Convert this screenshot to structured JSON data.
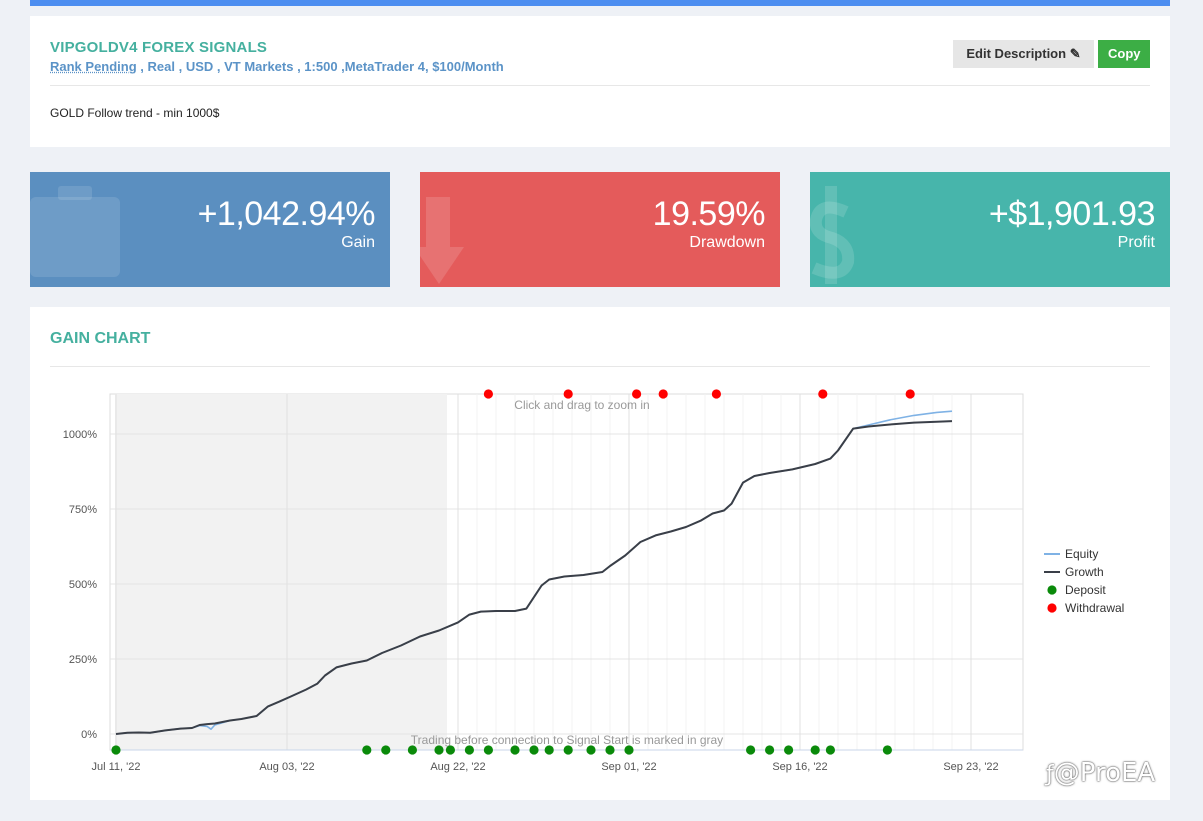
{
  "signal": {
    "title": "VIPGOLDV4 FOREX SIGNALS",
    "rank": "Rank Pending",
    "details": " , Real , USD , VT Markets , 1:500 ,MetaTrader 4, $100/Month",
    "description": "GOLD Follow trend - min 1000$",
    "edit_label": "Edit Description",
    "copy_label": "Copy"
  },
  "stats": [
    {
      "value": "+1,042.94%",
      "label": "Gain",
      "color": "#5b8fc0",
      "icon": "briefcase-icon"
    },
    {
      "value": "19.59%",
      "label": "Drawdown",
      "color": "#e45b5b",
      "icon": "arrow-down-icon"
    },
    {
      "value": "+$1,901.93",
      "label": "Profit",
      "color": "#47b5ab",
      "icon": "dollar-icon"
    }
  ],
  "chart_section": {
    "title": "GAIN CHART",
    "zoom_hint": "Click and drag to zoom in",
    "gray_note": "Trading before connection to Signal Start is marked in gray"
  },
  "watermark": "@ProEA",
  "chart_data": {
    "type": "line",
    "x_ticks": [
      "Jul 11, '22",
      "Aug 03, '22",
      "Aug 22, '22",
      "Sep 01, '22",
      "Sep 16, '22",
      "Sep 23, '22"
    ],
    "y_ticks": [
      "0%",
      "250%",
      "500%",
      "750%",
      "1000%"
    ],
    "ylim": [
      -50,
      1130
    ],
    "legend_position": "right",
    "colors": {
      "equity": "#7fb2e5",
      "growth": "#3a3f48",
      "deposit": "#0a8a0a",
      "withdrawal": "#ff0000"
    },
    "series": [
      {
        "name": "Equity",
        "points": [
          [
            0,
            0
          ],
          [
            3,
            4
          ],
          [
            6,
            5
          ],
          [
            9,
            4
          ],
          [
            13,
            12
          ],
          [
            17,
            18
          ],
          [
            20,
            20
          ],
          [
            22,
            28
          ],
          [
            24,
            25
          ],
          [
            25,
            16
          ],
          [
            26,
            30
          ],
          [
            30,
            45
          ],
          [
            33,
            50
          ],
          [
            37,
            60
          ],
          [
            40,
            92
          ],
          [
            43,
            108
          ],
          [
            46,
            125
          ],
          [
            50,
            148
          ],
          [
            53,
            168
          ],
          [
            55,
            195
          ],
          [
            58,
            222
          ],
          [
            62,
            235
          ],
          [
            66,
            245
          ],
          [
            70,
            270
          ],
          [
            75,
            295
          ],
          [
            80,
            325
          ],
          [
            85,
            345
          ],
          [
            90,
            372
          ],
          [
            93,
            398
          ],
          [
            96,
            408
          ],
          [
            100,
            410
          ],
          [
            105,
            410
          ],
          [
            108,
            418
          ],
          [
            112,
            495
          ],
          [
            114,
            515
          ],
          [
            118,
            525
          ],
          [
            123,
            530
          ],
          [
            128,
            540
          ],
          [
            130,
            560
          ],
          [
            134,
            595
          ],
          [
            138,
            640
          ],
          [
            142,
            662
          ],
          [
            146,
            675
          ],
          [
            150,
            690
          ],
          [
            154,
            712
          ],
          [
            157,
            735
          ],
          [
            160,
            745
          ],
          [
            162,
            768
          ],
          [
            165,
            838
          ],
          [
            168,
            860
          ],
          [
            172,
            870
          ],
          [
            178,
            882
          ],
          [
            184,
            900
          ],
          [
            188,
            918
          ],
          [
            190,
            945
          ],
          [
            194,
            1018
          ],
          [
            198,
            1030
          ],
          [
            204,
            1048
          ],
          [
            210,
            1062
          ],
          [
            216,
            1072
          ],
          [
            220,
            1076
          ]
        ]
      },
      {
        "name": "Growth",
        "points": [
          [
            0,
            0
          ],
          [
            3,
            4
          ],
          [
            6,
            5
          ],
          [
            9,
            4
          ],
          [
            13,
            12
          ],
          [
            17,
            18
          ],
          [
            20,
            20
          ],
          [
            22,
            30
          ],
          [
            24,
            33
          ],
          [
            26,
            35
          ],
          [
            30,
            45
          ],
          [
            33,
            50
          ],
          [
            37,
            60
          ],
          [
            40,
            92
          ],
          [
            43,
            108
          ],
          [
            46,
            125
          ],
          [
            50,
            148
          ],
          [
            53,
            168
          ],
          [
            55,
            195
          ],
          [
            58,
            222
          ],
          [
            62,
            235
          ],
          [
            66,
            245
          ],
          [
            70,
            270
          ],
          [
            75,
            295
          ],
          [
            80,
            325
          ],
          [
            85,
            345
          ],
          [
            90,
            372
          ],
          [
            93,
            398
          ],
          [
            96,
            408
          ],
          [
            100,
            410
          ],
          [
            105,
            410
          ],
          [
            108,
            418
          ],
          [
            112,
            495
          ],
          [
            114,
            515
          ],
          [
            118,
            525
          ],
          [
            123,
            530
          ],
          [
            128,
            540
          ],
          [
            130,
            560
          ],
          [
            134,
            595
          ],
          [
            138,
            640
          ],
          [
            142,
            662
          ],
          [
            146,
            675
          ],
          [
            150,
            690
          ],
          [
            154,
            712
          ],
          [
            157,
            735
          ],
          [
            160,
            745
          ],
          [
            162,
            768
          ],
          [
            165,
            838
          ],
          [
            168,
            860
          ],
          [
            172,
            870
          ],
          [
            178,
            882
          ],
          [
            184,
            900
          ],
          [
            188,
            918
          ],
          [
            190,
            945
          ],
          [
            194,
            1018
          ],
          [
            198,
            1025
          ],
          [
            204,
            1032
          ],
          [
            210,
            1038
          ],
          [
            216,
            1041
          ],
          [
            220,
            1043
          ]
        ]
      },
      {
        "name": "Deposit",
        "points": [
          0,
          66,
          71,
          78,
          85,
          88,
          93,
          98,
          105,
          110,
          114,
          119,
          125,
          130,
          135,
          167,
          172,
          177,
          184,
          188,
          203
        ]
      },
      {
        "name": "Withdrawal",
        "points": [
          98,
          119,
          137,
          144,
          158,
          186,
          209
        ]
      }
    ]
  }
}
